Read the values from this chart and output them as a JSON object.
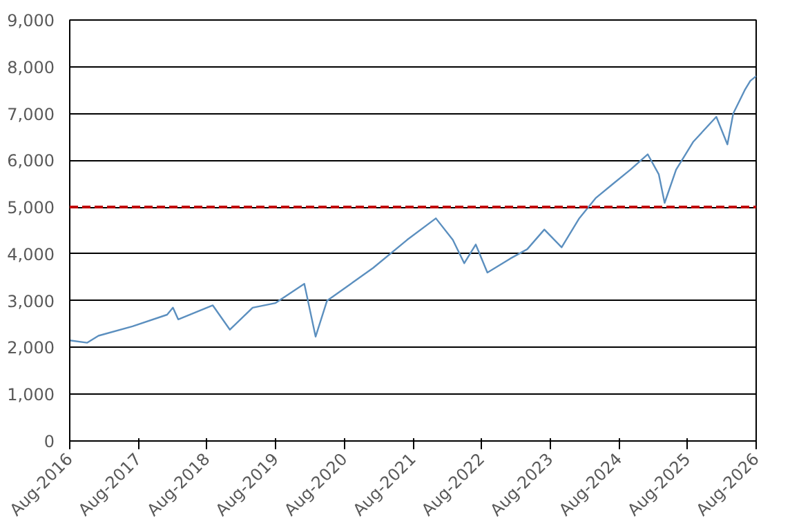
{
  "chart_data": {
    "type": "line",
    "x": [
      "2016-08",
      "2016-11",
      "2017-01",
      "2017-07",
      "2018-01",
      "2018-02",
      "2018-03",
      "2018-09",
      "2018-12",
      "2019-04",
      "2019-08",
      "2020-01",
      "2020-03",
      "2020-05",
      "2020-09",
      "2021-01",
      "2021-07",
      "2021-12",
      "2022-03",
      "2022-05",
      "2022-07",
      "2022-09",
      "2023-01",
      "2023-04",
      "2023-07",
      "2023-10",
      "2024-01",
      "2024-04",
      "2024-07",
      "2024-10",
      "2025-01",
      "2025-03",
      "2025-04",
      "2025-06",
      "2025-09",
      "2026-01",
      "2026-03",
      "2026-04",
      "2026-06",
      "2026-07",
      "2026-08"
    ],
    "series": [
      {
        "color": "#5b8fbf",
        "values": [
          2150,
          2100,
          2250,
          2450,
          2700,
          2850,
          2600,
          2900,
          2380,
          2850,
          2950,
          3360,
          2230,
          3000,
          3350,
          3700,
          4300,
          4760,
          4300,
          3800,
          4200,
          3600,
          3900,
          4100,
          4520,
          4140,
          4750,
          5200,
          5500,
          5800,
          6130,
          5700,
          5090,
          5800,
          6400,
          6930,
          6340,
          7000,
          7500,
          7700,
          7800
        ]
      }
    ],
    "xlim": [
      "2016-08",
      "2026-08"
    ],
    "xticks": [
      {
        "value": "2016-08",
        "label": "Aug-2016"
      },
      {
        "value": "2017-08",
        "label": "Aug-2017"
      },
      {
        "value": "2018-08",
        "label": "Aug-2018"
      },
      {
        "value": "2019-08",
        "label": "Aug-2019"
      },
      {
        "value": "2020-08",
        "label": "Aug-2020"
      },
      {
        "value": "2021-08",
        "label": "Aug-2021"
      },
      {
        "value": "2022-08",
        "label": "Aug-2022"
      },
      {
        "value": "2023-08",
        "label": "Aug-2023"
      },
      {
        "value": "2024-08",
        "label": "Aug-2024"
      },
      {
        "value": "2025-08",
        "label": "Aug-2025"
      },
      {
        "value": "2026-08",
        "label": "Aug-2026"
      }
    ],
    "ylim": [
      0,
      9000
    ],
    "yticks": [
      0,
      {
        "value": 1000,
        "label": "1,000"
      },
      {
        "value": 2000,
        "label": "2,000"
      },
      {
        "value": 3000,
        "label": "3,000"
      },
      {
        "value": 4000,
        "label": "4,000"
      },
      {
        "value": 5000,
        "label": "5,000"
      },
      {
        "value": 6000,
        "label": "6,000"
      },
      {
        "value": 7000,
        "label": "7,000"
      },
      {
        "value": 8000,
        "label": "8,000"
      },
      {
        "value": 9000,
        "label": "9,000"
      }
    ],
    "grid": "y",
    "line_style": "solid",
    "ref_lines": [
      {
        "axis": "y",
        "value": 5000,
        "color": "#c00000",
        "line_style": "dashed"
      }
    ]
  }
}
